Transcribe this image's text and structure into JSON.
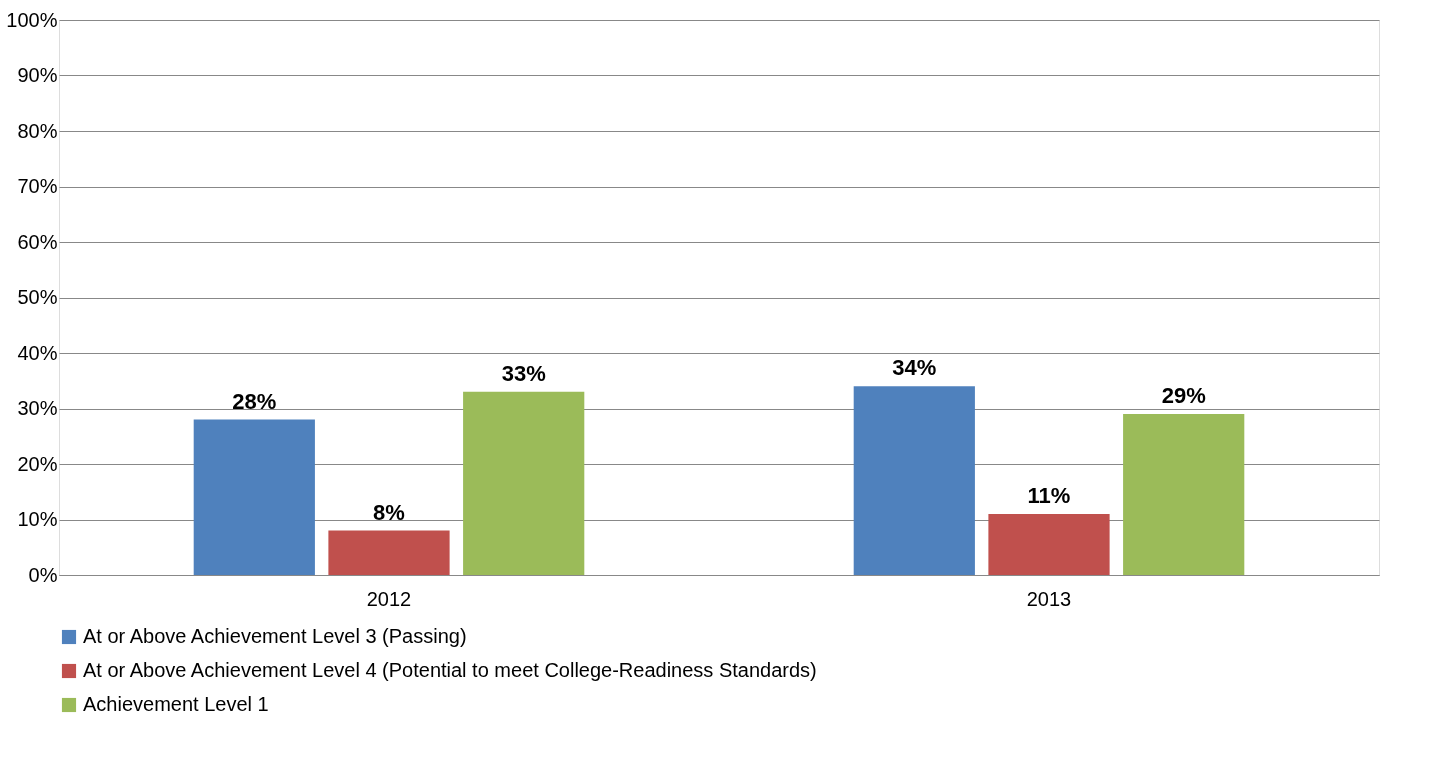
{
  "chart_data": {
    "type": "bar",
    "categories": [
      "2012",
      "2013"
    ],
    "series": [
      {
        "name": "At or Above Achievement Level 3 (Passing)",
        "color": "#4f81bd",
        "values": [
          28,
          34
        ],
        "value_labels": [
          "28%",
          "34%"
        ]
      },
      {
        "name": "At or Above Achievement Level 4 (Potential to meet College-Readiness Standards)",
        "color": "#c0504d",
        "values": [
          8,
          11
        ],
        "value_labels": [
          "8%",
          "11%"
        ]
      },
      {
        "name": "Achievement Level 1",
        "color": "#9bbb59",
        "values": [
          33,
          29
        ],
        "value_labels": [
          "33%",
          "29%"
        ]
      }
    ],
    "ylim": [
      0,
      100
    ],
    "yticks": [
      {
        "value": 0,
        "label": "0%"
      },
      {
        "value": 10,
        "label": "10%"
      },
      {
        "value": 20,
        "label": "20%"
      },
      {
        "value": 30,
        "label": "30%"
      },
      {
        "value": 40,
        "label": "40%"
      },
      {
        "value": 50,
        "label": "50%"
      },
      {
        "value": 60,
        "label": "60%"
      },
      {
        "value": 70,
        "label": "70%"
      },
      {
        "value": 80,
        "label": "80%"
      },
      {
        "value": 90,
        "label": "90%"
      },
      {
        "value": 100,
        "label": "100%"
      }
    ],
    "grid": "y",
    "legend": "bottom"
  }
}
